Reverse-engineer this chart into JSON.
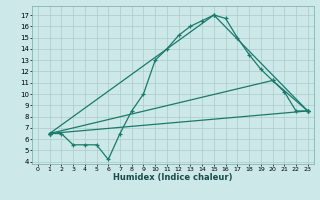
{
  "bg_color": "#cce8e8",
  "grid_color": "#aacccc",
  "line_color": "#1a7a6a",
  "xlabel": "Humidex (Indice chaleur)",
  "xlim": [
    -0.5,
    23.5
  ],
  "ylim": [
    3.8,
    17.8
  ],
  "xticks": [
    0,
    1,
    2,
    3,
    4,
    5,
    6,
    7,
    8,
    9,
    10,
    11,
    12,
    13,
    14,
    15,
    16,
    17,
    18,
    19,
    20,
    21,
    22,
    23
  ],
  "yticks": [
    4,
    5,
    6,
    7,
    8,
    9,
    10,
    11,
    12,
    13,
    14,
    15,
    16,
    17
  ],
  "line1_x": [
    1,
    2,
    3,
    4,
    5,
    6,
    7,
    8,
    9,
    10,
    11,
    12,
    13,
    14,
    15,
    16,
    17,
    18,
    19,
    20,
    21,
    22,
    23
  ],
  "line1_y": [
    6.5,
    6.5,
    5.5,
    5.5,
    5.5,
    4.2,
    6.5,
    8.5,
    10.0,
    13.0,
    14.0,
    15.2,
    16.0,
    16.5,
    17.0,
    16.7,
    15.0,
    13.5,
    12.2,
    11.2,
    10.2,
    8.5,
    8.5
  ],
  "line2_x": [
    1,
    15,
    23
  ],
  "line2_y": [
    6.5,
    17.0,
    8.5
  ],
  "line3_x": [
    1,
    20,
    23
  ],
  "line3_y": [
    6.5,
    11.2,
    8.5
  ],
  "line4_x": [
    1,
    23
  ],
  "line4_y": [
    6.5,
    8.5
  ]
}
